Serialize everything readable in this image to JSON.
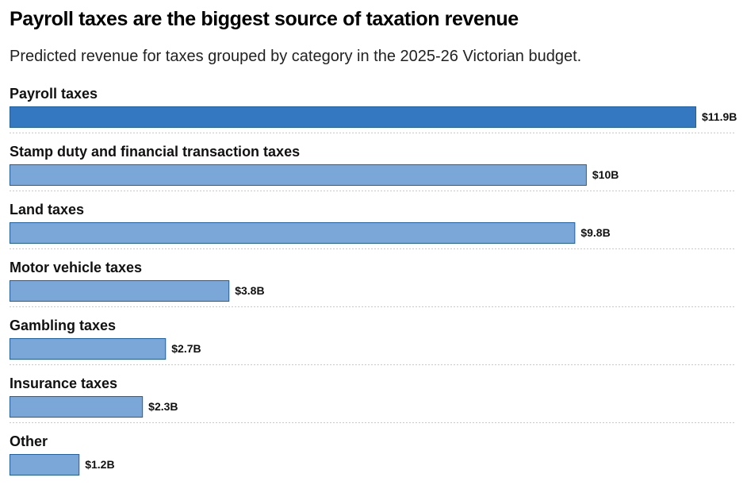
{
  "chart_data": {
    "type": "bar",
    "orientation": "horizontal",
    "title": "Payroll taxes are the biggest source of taxation revenue",
    "subtitle": "Predicted revenue for taxes grouped by category in the 2025-26 Victorian budget.",
    "categories": [
      "Payroll taxes",
      "Stamp duty and financial transaction taxes",
      "Land taxes",
      "Motor vehicle taxes",
      "Gambling taxes",
      "Insurance taxes",
      "Other"
    ],
    "values": [
      11.9,
      10,
      9.8,
      3.8,
      2.7,
      2.3,
      1.2
    ],
    "value_labels": [
      "$11.9B",
      "$10B",
      "$9.8B",
      "$3.8B",
      "$2.7B",
      "$2.3B",
      "$1.2B"
    ],
    "unit": "$B",
    "highlight_index": 0,
    "colors": {
      "highlight": "#3478c1",
      "default": "#7aa7d8",
      "border": "#1f5fa3",
      "divider": "#c8c8c8"
    },
    "grid": false,
    "legend": false
  }
}
